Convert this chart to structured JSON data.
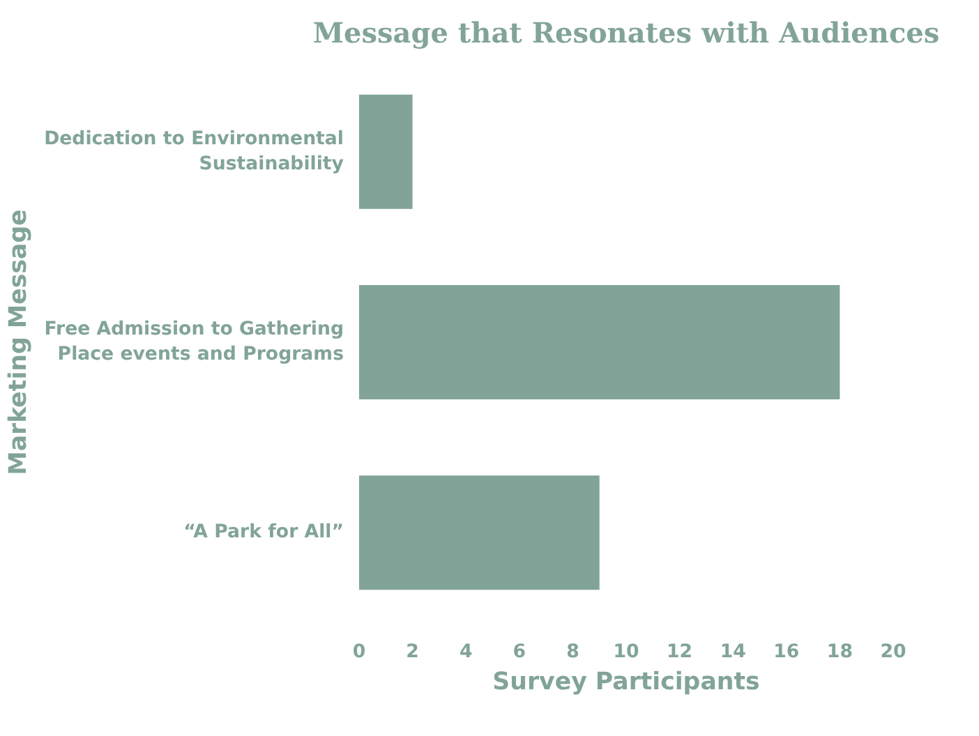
{
  "chart_data": {
    "type": "bar",
    "orientation": "horizontal",
    "title": "Message that Resonates with Audiences",
    "xlabel": "Survey Participants",
    "ylabel": "Marketing Message",
    "categories": [
      "Dedication to Environmental\nSustainability",
      "Free Admission to Gathering\nPlace events and Programs",
      "“A Park for All”"
    ],
    "values": [
      2,
      18,
      9
    ],
    "color": "#82a498",
    "xlim": [
      0,
      20
    ],
    "xticks": [
      0,
      2,
      4,
      6,
      8,
      10,
      12,
      14,
      16,
      18,
      20
    ],
    "grid": false
  }
}
